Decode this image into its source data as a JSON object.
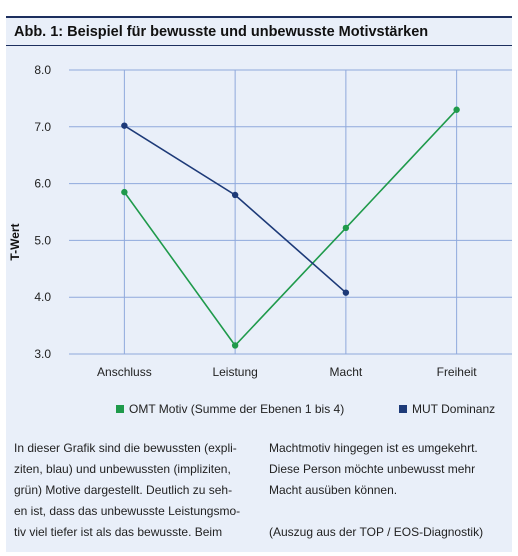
{
  "figure": {
    "title": "Abb. 1: Beispiel für bewusste und unbewusste Motivstärken"
  },
  "colors": {
    "panel_bg": "#e9eff9",
    "grid": "#8fa9dc",
    "omt": "#1f9a4b",
    "mut": "#1d3a78",
    "text": "#222222"
  },
  "chart_data": {
    "type": "line",
    "ylabel": "T-Wert",
    "xlabel": "",
    "categories": [
      "Anschluss",
      "Leistung",
      "Macht",
      "Freiheit"
    ],
    "ylim": [
      3.0,
      8.0
    ],
    "yticks": [
      "3.0",
      "4.0",
      "5.0",
      "6.0",
      "7.0",
      "8.0"
    ],
    "grid": true,
    "legend_position": "bottom",
    "series": [
      {
        "name": "OMT Motiv (Summe der Ebenen 1 bis 4)",
        "color": "#1f9a4b",
        "values": [
          5.85,
          3.15,
          5.22,
          7.3
        ]
      },
      {
        "name": "MUT Dominanz",
        "color": "#1d3a78",
        "values": [
          7.02,
          5.8,
          4.08,
          null
        ]
      }
    ]
  },
  "caption": {
    "left": "In dieser Grafik sind die bewussten (expli-\nziten, blau) und unbewussten (impliziten,\ngrün) Motive dargestellt. Deutlich zu seh-\nen ist, dass das unbewusste Leistungsmo-\ntiv viel tiefer ist als das bewusste. Beim",
    "right": "Machtmotiv hingegen ist es umgekehrt.\nDiese Person möchte unbewusst mehr\nMacht ausüben können.\n\n(Auszug aus der TOP / EOS-Diagnostik)"
  }
}
